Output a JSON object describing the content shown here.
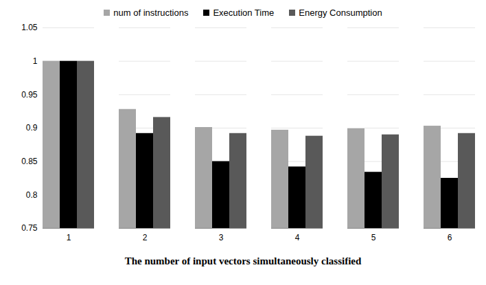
{
  "chart_data": {
    "type": "bar",
    "x_label": "The number of input vectors simultaneously classified",
    "categories": [
      "1",
      "2",
      "3",
      "4",
      "5",
      "6"
    ],
    "series": [
      {
        "name": "num of instructions",
        "color": "#a6a6a6",
        "values": [
          1,
          0.928,
          0.901,
          0.897,
          0.899,
          0.903
        ]
      },
      {
        "name": "Execution Time",
        "color": "#000000",
        "values": [
          1,
          0.892,
          0.85,
          0.842,
          0.834,
          0.825
        ]
      },
      {
        "name": "Energy Consumption",
        "color": "#595959",
        "values": [
          1,
          0.916,
          0.892,
          0.888,
          0.89,
          0.892
        ]
      }
    ],
    "ylim": [
      0.75,
      1.05
    ],
    "yticks": [
      0.75,
      0.8,
      0.85,
      0.9,
      0.95,
      1,
      1.05
    ],
    "grid": true,
    "legend": "top"
  }
}
